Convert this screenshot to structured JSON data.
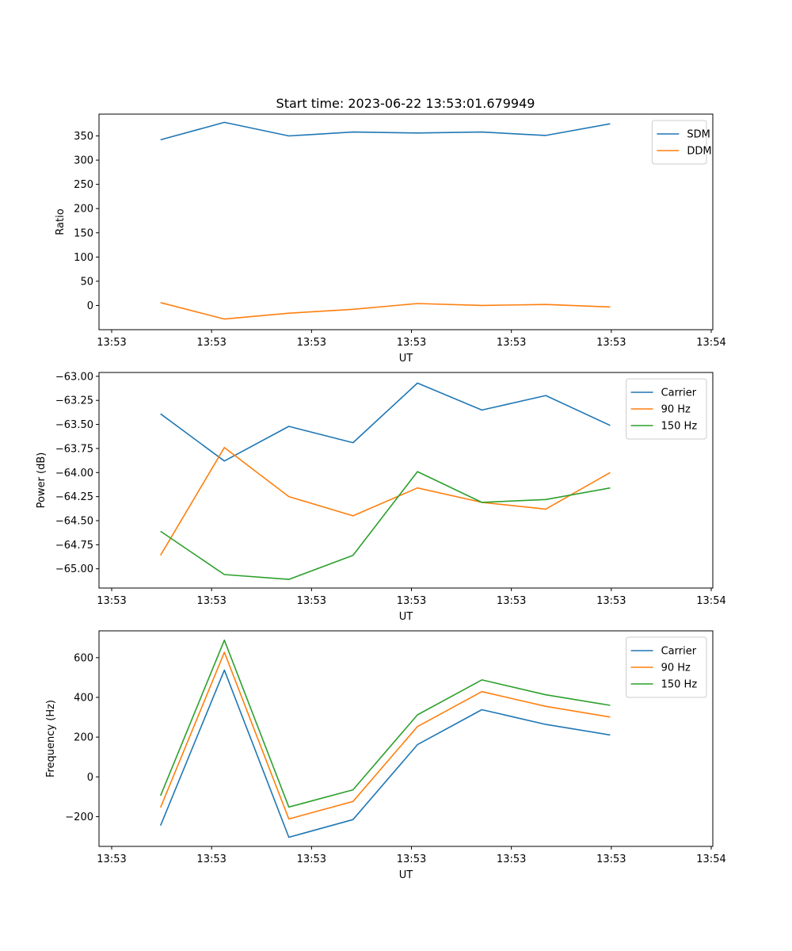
{
  "figure": {
    "title": "Start time: 2023-06-22 13:53:01.679949"
  },
  "colors": {
    "c0": "#1f77b4",
    "c1": "#ff7f0e",
    "c2": "#2ca02c"
  },
  "chart_data": [
    {
      "type": "line",
      "title": "Start time: 2023-06-22 13:53:01.679949",
      "xlabel": "UT",
      "ylabel": "Ratio",
      "x_tick_labels": [
        "13:53",
        "13:53",
        "13:53",
        "13:53",
        "13:53",
        "13:53",
        "13:54"
      ],
      "y_ticks": [
        0,
        50,
        100,
        150,
        200,
        250,
        300,
        350
      ],
      "ylim": [
        -50,
        395
      ],
      "legend_position": "upper-right",
      "grid": false,
      "series": [
        {
          "name": "SDM",
          "color": "#1f77b4",
          "values": [
            342,
            378,
            350,
            358,
            356,
            358,
            351,
            375
          ]
        },
        {
          "name": "DDM",
          "color": "#ff7f0e",
          "values": [
            6,
            -28,
            -16,
            -8,
            4,
            0,
            2,
            -3
          ]
        }
      ]
    },
    {
      "type": "line",
      "title": "",
      "xlabel": "UT",
      "ylabel": "Power (dB)",
      "x_tick_labels": [
        "13:53",
        "13:53",
        "13:53",
        "13:53",
        "13:53",
        "13:53",
        "13:54"
      ],
      "y_ticks": [
        -65.0,
        -64.75,
        -64.5,
        -64.25,
        -64.0,
        -63.75,
        -63.5,
        -63.25,
        -63.0
      ],
      "y_tick_labels": [
        "−65.00",
        "−64.75",
        "−64.50",
        "−64.25",
        "−64.00",
        "−63.75",
        "−63.50",
        "−63.25",
        "−63.00"
      ],
      "ylim": [
        -65.2,
        -62.96
      ],
      "legend_position": "upper-right",
      "grid": false,
      "series": [
        {
          "name": "Carrier",
          "color": "#1f77b4",
          "values": [
            -63.39,
            -63.88,
            -63.52,
            -63.69,
            -63.07,
            -63.35,
            -63.2,
            -63.51
          ]
        },
        {
          "name": "90 Hz",
          "color": "#ff7f0e",
          "values": [
            -64.86,
            -63.74,
            -64.25,
            -64.45,
            -64.16,
            -64.31,
            -64.38,
            -64.0
          ]
        },
        {
          "name": "150 Hz",
          "color": "#2ca02c",
          "values": [
            -64.61,
            -65.06,
            -65.11,
            -64.86,
            -63.99,
            -64.31,
            -64.28,
            -64.16
          ]
        }
      ]
    },
    {
      "type": "line",
      "title": "",
      "xlabel": "UT",
      "ylabel": "Frequency (Hz)",
      "x_tick_labels": [
        "13:53",
        "13:53",
        "13:53",
        "13:53",
        "13:53",
        "13:53",
        "13:54"
      ],
      "y_ticks": [
        -200,
        0,
        200,
        400,
        600
      ],
      "y_tick_labels": [
        "−200",
        "0",
        "200",
        "400",
        "600"
      ],
      "ylim": [
        -350,
        735
      ],
      "legend_position": "upper-right",
      "grid": false,
      "series": [
        {
          "name": "Carrier",
          "color": "#1f77b4",
          "values": [
            -245,
            537,
            -304,
            -215,
            162,
            338,
            264,
            211
          ]
        },
        {
          "name": "90 Hz",
          "color": "#ff7f0e",
          "values": [
            -154,
            627,
            -212,
            -124,
            253,
            429,
            355,
            301
          ]
        },
        {
          "name": "150 Hz",
          "color": "#2ca02c",
          "values": [
            -95,
            688,
            -152,
            -65,
            312,
            488,
            413,
            360
          ]
        }
      ]
    }
  ]
}
